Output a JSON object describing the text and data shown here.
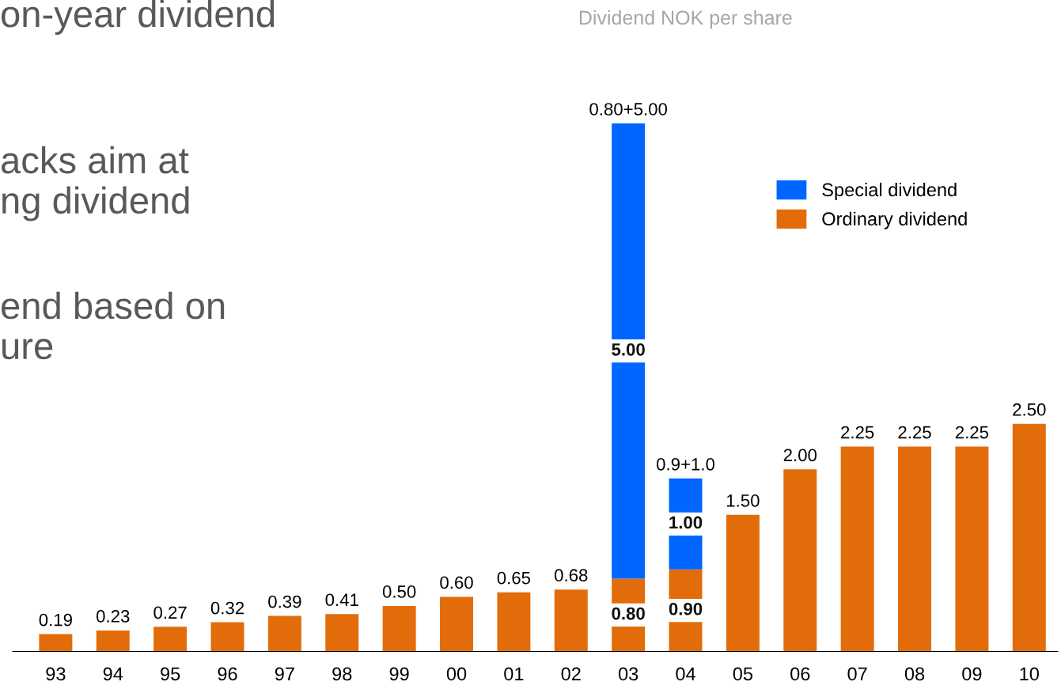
{
  "chart_data": {
    "type": "bar",
    "title": "Dividend NOK per share",
    "categories": [
      "93",
      "94",
      "95",
      "96",
      "97",
      "98",
      "99",
      "00",
      "01",
      "02",
      "03",
      "04",
      "05",
      "06",
      "07",
      "08",
      "09",
      "10"
    ],
    "stacked": true,
    "series": [
      {
        "name": "Ordinary dividend",
        "color": "#e36c0a",
        "values": [
          0.19,
          0.23,
          0.27,
          0.32,
          0.39,
          0.41,
          0.5,
          0.6,
          0.65,
          0.68,
          0.8,
          0.9,
          1.5,
          2.0,
          2.25,
          2.25,
          2.25,
          2.5
        ],
        "value_labels": [
          "0.19",
          "0.23",
          "0.27",
          "0.32",
          "0.39",
          "0.41",
          "0.50",
          "0.60",
          "0.65",
          "0.68",
          "0.80",
          "0.90",
          "1.50",
          "2.00",
          "2.25",
          "2.25",
          "2.25",
          "2.50"
        ]
      },
      {
        "name": "Special dividend",
        "color": "#0066ff",
        "values": [
          null,
          null,
          null,
          null,
          null,
          null,
          null,
          null,
          null,
          null,
          5.0,
          1.0,
          null,
          null,
          null,
          null,
          null,
          null
        ],
        "value_labels": [
          null,
          null,
          null,
          null,
          null,
          null,
          null,
          null,
          null,
          null,
          "5.00",
          "1.00",
          null,
          null,
          null,
          null,
          null,
          null
        ]
      }
    ],
    "totals": [
      null,
      null,
      null,
      null,
      null,
      null,
      null,
      null,
      null,
      null,
      "0.80+5.00",
      "0.9+1.0",
      null,
      null,
      null,
      null,
      null,
      null
    ],
    "legend": "top right",
    "grid": false,
    "annotations": [
      "on-year dividend",
      "acks aim at\nng dividend",
      "end based on\nure"
    ]
  }
}
